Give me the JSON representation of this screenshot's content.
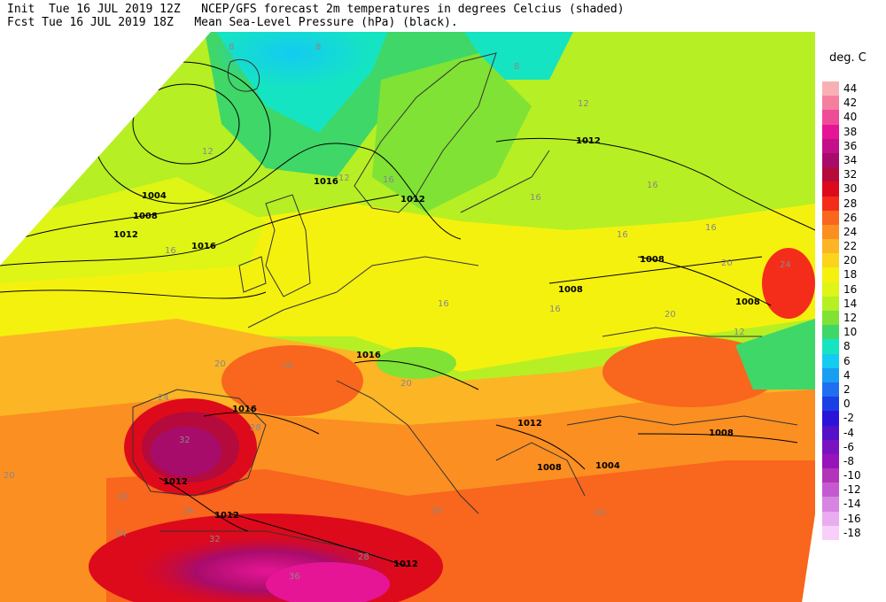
{
  "header": {
    "line1": "Init  Tue 16 JUL 2019 12Z   NCEP/GFS forecast 2m temperatures in degrees Celcius (shaded)",
    "line2": "Fcst Tue 16 JUL 2019 18Z   Mean Sea-Level Pressure (hPa) (black)."
  },
  "legend": {
    "title": "deg. C",
    "items": [
      {
        "label": "44",
        "color": "#f7b1b5"
      },
      {
        "label": "42",
        "color": "#f47f9f"
      },
      {
        "label": "40",
        "color": "#ef4c98"
      },
      {
        "label": "38",
        "color": "#e61596"
      },
      {
        "label": "36",
        "color": "#c40f8a"
      },
      {
        "label": "34",
        "color": "#a80c6b"
      },
      {
        "label": "32",
        "color": "#b50a3c"
      },
      {
        "label": "30",
        "color": "#dd0a1b"
      },
      {
        "label": "28",
        "color": "#f42d1a"
      },
      {
        "label": "26",
        "color": "#f9661d"
      },
      {
        "label": "24",
        "color": "#fb8f22"
      },
      {
        "label": "22",
        "color": "#fcb524"
      },
      {
        "label": "20",
        "color": "#fbd51c"
      },
      {
        "label": "18",
        "color": "#f5f10e"
      },
      {
        "label": "16",
        "color": "#def516"
      },
      {
        "label": "14",
        "color": "#b6ef24"
      },
      {
        "label": "12",
        "color": "#80e234"
      },
      {
        "label": "10",
        "color": "#3fd768"
      },
      {
        "label": "8",
        "color": "#15e4c2"
      },
      {
        "label": "6",
        "color": "#14cbf1"
      },
      {
        "label": "4",
        "color": "#189ff2"
      },
      {
        "label": "2",
        "color": "#1f6ff0"
      },
      {
        "label": "0",
        "color": "#1b3fe6"
      },
      {
        "label": "-2",
        "color": "#2a14d8"
      },
      {
        "label": "-4",
        "color": "#5411c8"
      },
      {
        "label": "-6",
        "color": "#7a12c2"
      },
      {
        "label": "-8",
        "color": "#9614ba"
      },
      {
        "label": "-10",
        "color": "#b234b8"
      },
      {
        "label": "-12",
        "color": "#c55ad0"
      },
      {
        "label": "-14",
        "color": "#d884e2"
      },
      {
        "label": "-16",
        "color": "#e9acef"
      },
      {
        "label": "-18",
        "color": "#f7cff9"
      }
    ]
  },
  "temperature_labels": [
    "8",
    "8",
    "8",
    "12",
    "12",
    "12",
    "12",
    "16",
    "16",
    "16",
    "16",
    "16",
    "16",
    "16",
    "16",
    "20",
    "20",
    "20",
    "20",
    "20",
    "20",
    "24",
    "24",
    "24",
    "24",
    "24",
    "24",
    "24",
    "28",
    "28",
    "32",
    "32",
    "36"
  ],
  "pressure_labels": [
    "1004",
    "1008",
    "1012",
    "1016",
    "1016",
    "1012",
    "1016",
    "1016",
    "1012",
    "1008",
    "1008",
    "1008",
    "1012",
    "1012",
    "1012",
    "1008",
    "1004",
    "1008",
    "1012"
  ]
}
